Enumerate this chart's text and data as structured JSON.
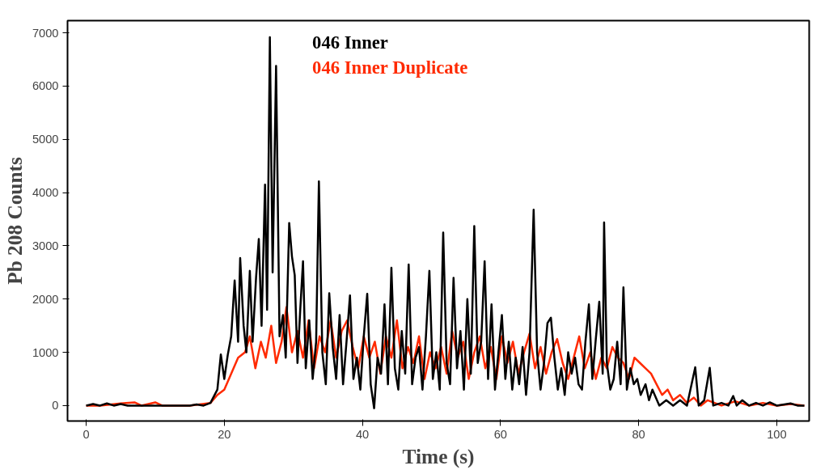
{
  "chart_data": {
    "type": "line",
    "xlabel": "Time (s)",
    "ylabel": "Pb 208 Counts",
    "xlim": [
      -2.7,
      104.7
    ],
    "ylim": [
      -290,
      7230
    ],
    "xticks": [
      0,
      20,
      40,
      60,
      80,
      100
    ],
    "yticks": [
      0,
      1000,
      2000,
      3000,
      4000,
      5000,
      6000,
      7000
    ],
    "grid": false,
    "legend": "top",
    "marker": "none",
    "line_style": "solid",
    "series": [
      {
        "name": "046 Inner Duplicate",
        "color": "#ff2a00",
        "x": [
          0,
          2,
          5,
          7,
          8,
          10,
          11,
          15,
          18,
          19,
          20,
          21,
          22,
          23,
          23.7,
          24.5,
          25.3,
          26,
          26.8,
          27.5,
          28.3,
          29,
          29.8,
          30.6,
          31.4,
          32.2,
          33,
          33.8,
          34.6,
          35.4,
          36.2,
          37,
          37.8,
          38.6,
          39.4,
          40.2,
          41,
          41.8,
          42.6,
          43.4,
          44.2,
          45,
          45.8,
          46.6,
          47.4,
          48.2,
          49,
          49.8,
          50.6,
          51.4,
          52.2,
          53,
          53.8,
          54.6,
          55.4,
          56.2,
          57,
          57.8,
          58.6,
          59.4,
          60.2,
          61,
          61.8,
          62.6,
          63.4,
          64.2,
          65,
          65.8,
          66.6,
          67.4,
          68.2,
          69,
          69.8,
          70.6,
          71.4,
          72.2,
          73,
          73.8,
          74.6,
          75.4,
          76.2,
          77,
          77.8,
          78.6,
          79.4,
          80.2,
          81,
          81.8,
          82.6,
          83.4,
          84.2,
          85,
          86,
          87,
          88,
          89,
          90,
          91,
          92,
          94,
          96,
          98,
          100,
          102,
          104
        ],
        "values": [
          0,
          0,
          40,
          60,
          0,
          60,
          0,
          0,
          50,
          200,
          300,
          600,
          900,
          1000,
          1300,
          700,
          1200,
          900,
          1500,
          800,
          1200,
          1850,
          1000,
          1400,
          900,
          1600,
          700,
          1300,
          1000,
          1600,
          900,
          1400,
          1600,
          1100,
          700,
          1300,
          900,
          1200,
          600,
          1300,
          900,
          1600,
          700,
          1100,
          800,
          1300,
          500,
          1000,
          700,
          1100,
          600,
          1400,
          900,
          1200,
          500,
          1000,
          1300,
          700,
          1100,
          500,
          1300,
          800,
          1200,
          600,
          1000,
          1350,
          700,
          1100,
          600,
          1000,
          1250,
          800,
          500,
          900,
          1300,
          700,
          1000,
          500,
          900,
          700,
          1100,
          900,
          800,
          500,
          900,
          800,
          700,
          600,
          400,
          200,
          300,
          100,
          200,
          50,
          150,
          0,
          100,
          50,
          0,
          80,
          0,
          50,
          0,
          30,
          0
        ]
      },
      {
        "name": "046 Inner",
        "color": "#000000",
        "x": [
          0,
          1,
          2,
          3,
          4,
          5,
          6,
          10,
          15,
          16,
          17,
          18,
          19,
          19.5,
          20,
          20.5,
          21,
          21.5,
          22,
          22.3,
          22.8,
          23.2,
          23.7,
          24.1,
          24.6,
          25,
          25.4,
          25.9,
          26.2,
          26.6,
          27,
          27.5,
          28,
          28.5,
          28.9,
          29.4,
          29.8,
          30.2,
          30.6,
          31,
          31.4,
          31.8,
          32.3,
          32.8,
          33.3,
          33.7,
          34.2,
          34.7,
          35.2,
          35.7,
          36.2,
          36.7,
          37.2,
          37.7,
          38.2,
          38.7,
          39.2,
          39.7,
          40.2,
          40.7,
          41.2,
          41.7,
          42.2,
          42.7,
          43.2,
          43.7,
          44.2,
          44.7,
          45.2,
          45.7,
          46.2,
          46.7,
          47.2,
          47.7,
          48.2,
          48.7,
          49.2,
          49.7,
          50.2,
          50.7,
          51.2,
          51.7,
          52.2,
          52.7,
          53.2,
          53.7,
          54.2,
          54.7,
          55.2,
          55.7,
          56.2,
          56.7,
          57.2,
          57.7,
          58.2,
          58.7,
          59.2,
          59.7,
          60.2,
          60.7,
          61.2,
          61.7,
          62.2,
          62.7,
          63.2,
          63.7,
          64.2,
          64.8,
          65.3,
          65.8,
          66.3,
          66.8,
          67.3,
          67.8,
          68.3,
          68.8,
          69.3,
          69.8,
          70.3,
          70.8,
          71.3,
          71.8,
          72.3,
          72.8,
          73.3,
          73.8,
          74.3,
          74.8,
          75,
          75.4,
          75.9,
          76.4,
          76.9,
          77.4,
          77.8,
          78.3,
          78.8,
          79.3,
          79.8,
          80.3,
          81,
          81.5,
          82,
          83,
          84,
          85,
          86,
          87,
          88.2,
          88.7,
          89.5,
          90.3,
          90.8,
          92,
          93,
          93.7,
          94.2,
          95,
          96,
          97,
          98,
          99,
          100,
          102,
          103,
          104
        ],
        "values": [
          0,
          30,
          0,
          40,
          0,
          30,
          0,
          0,
          0,
          20,
          0,
          50,
          300,
          960,
          500,
          950,
          1300,
          2350,
          1200,
          2770,
          1500,
          1000,
          2530,
          1200,
          2400,
          3130,
          1500,
          4150,
          1800,
          6920,
          2500,
          6380,
          1300,
          1700,
          900,
          3430,
          2800,
          2450,
          800,
          1800,
          2710,
          700,
          1600,
          500,
          1200,
          4210,
          1000,
          400,
          2110,
          1100,
          500,
          1700,
          400,
          1200,
          2070,
          500,
          900,
          300,
          1300,
          2100,
          400,
          -50,
          900,
          600,
          1900,
          400,
          2590,
          700,
          300,
          1400,
          600,
          2650,
          400,
          900,
          1100,
          300,
          1300,
          2530,
          500,
          1000,
          300,
          3250,
          800,
          400,
          2400,
          700,
          1400,
          300,
          2000,
          600,
          3370,
          800,
          1200,
          2710,
          500,
          1900,
          300,
          1000,
          1700,
          500,
          1200,
          300,
          900,
          400,
          1100,
          200,
          1000,
          3680,
          1000,
          300,
          800,
          1550,
          1650,
          900,
          300,
          700,
          200,
          1000,
          600,
          900,
          400,
          300,
          1200,
          1900,
          500,
          1250,
          1950,
          600,
          3440,
          800,
          300,
          500,
          1200,
          400,
          2220,
          300,
          700,
          400,
          500,
          200,
          400,
          100,
          300,
          0,
          100,
          0,
          100,
          0,
          720,
          0,
          100,
          710,
          0,
          50,
          0,
          180,
          0,
          100,
          0,
          50,
          0,
          60,
          0,
          40,
          0,
          0
        ]
      }
    ]
  }
}
